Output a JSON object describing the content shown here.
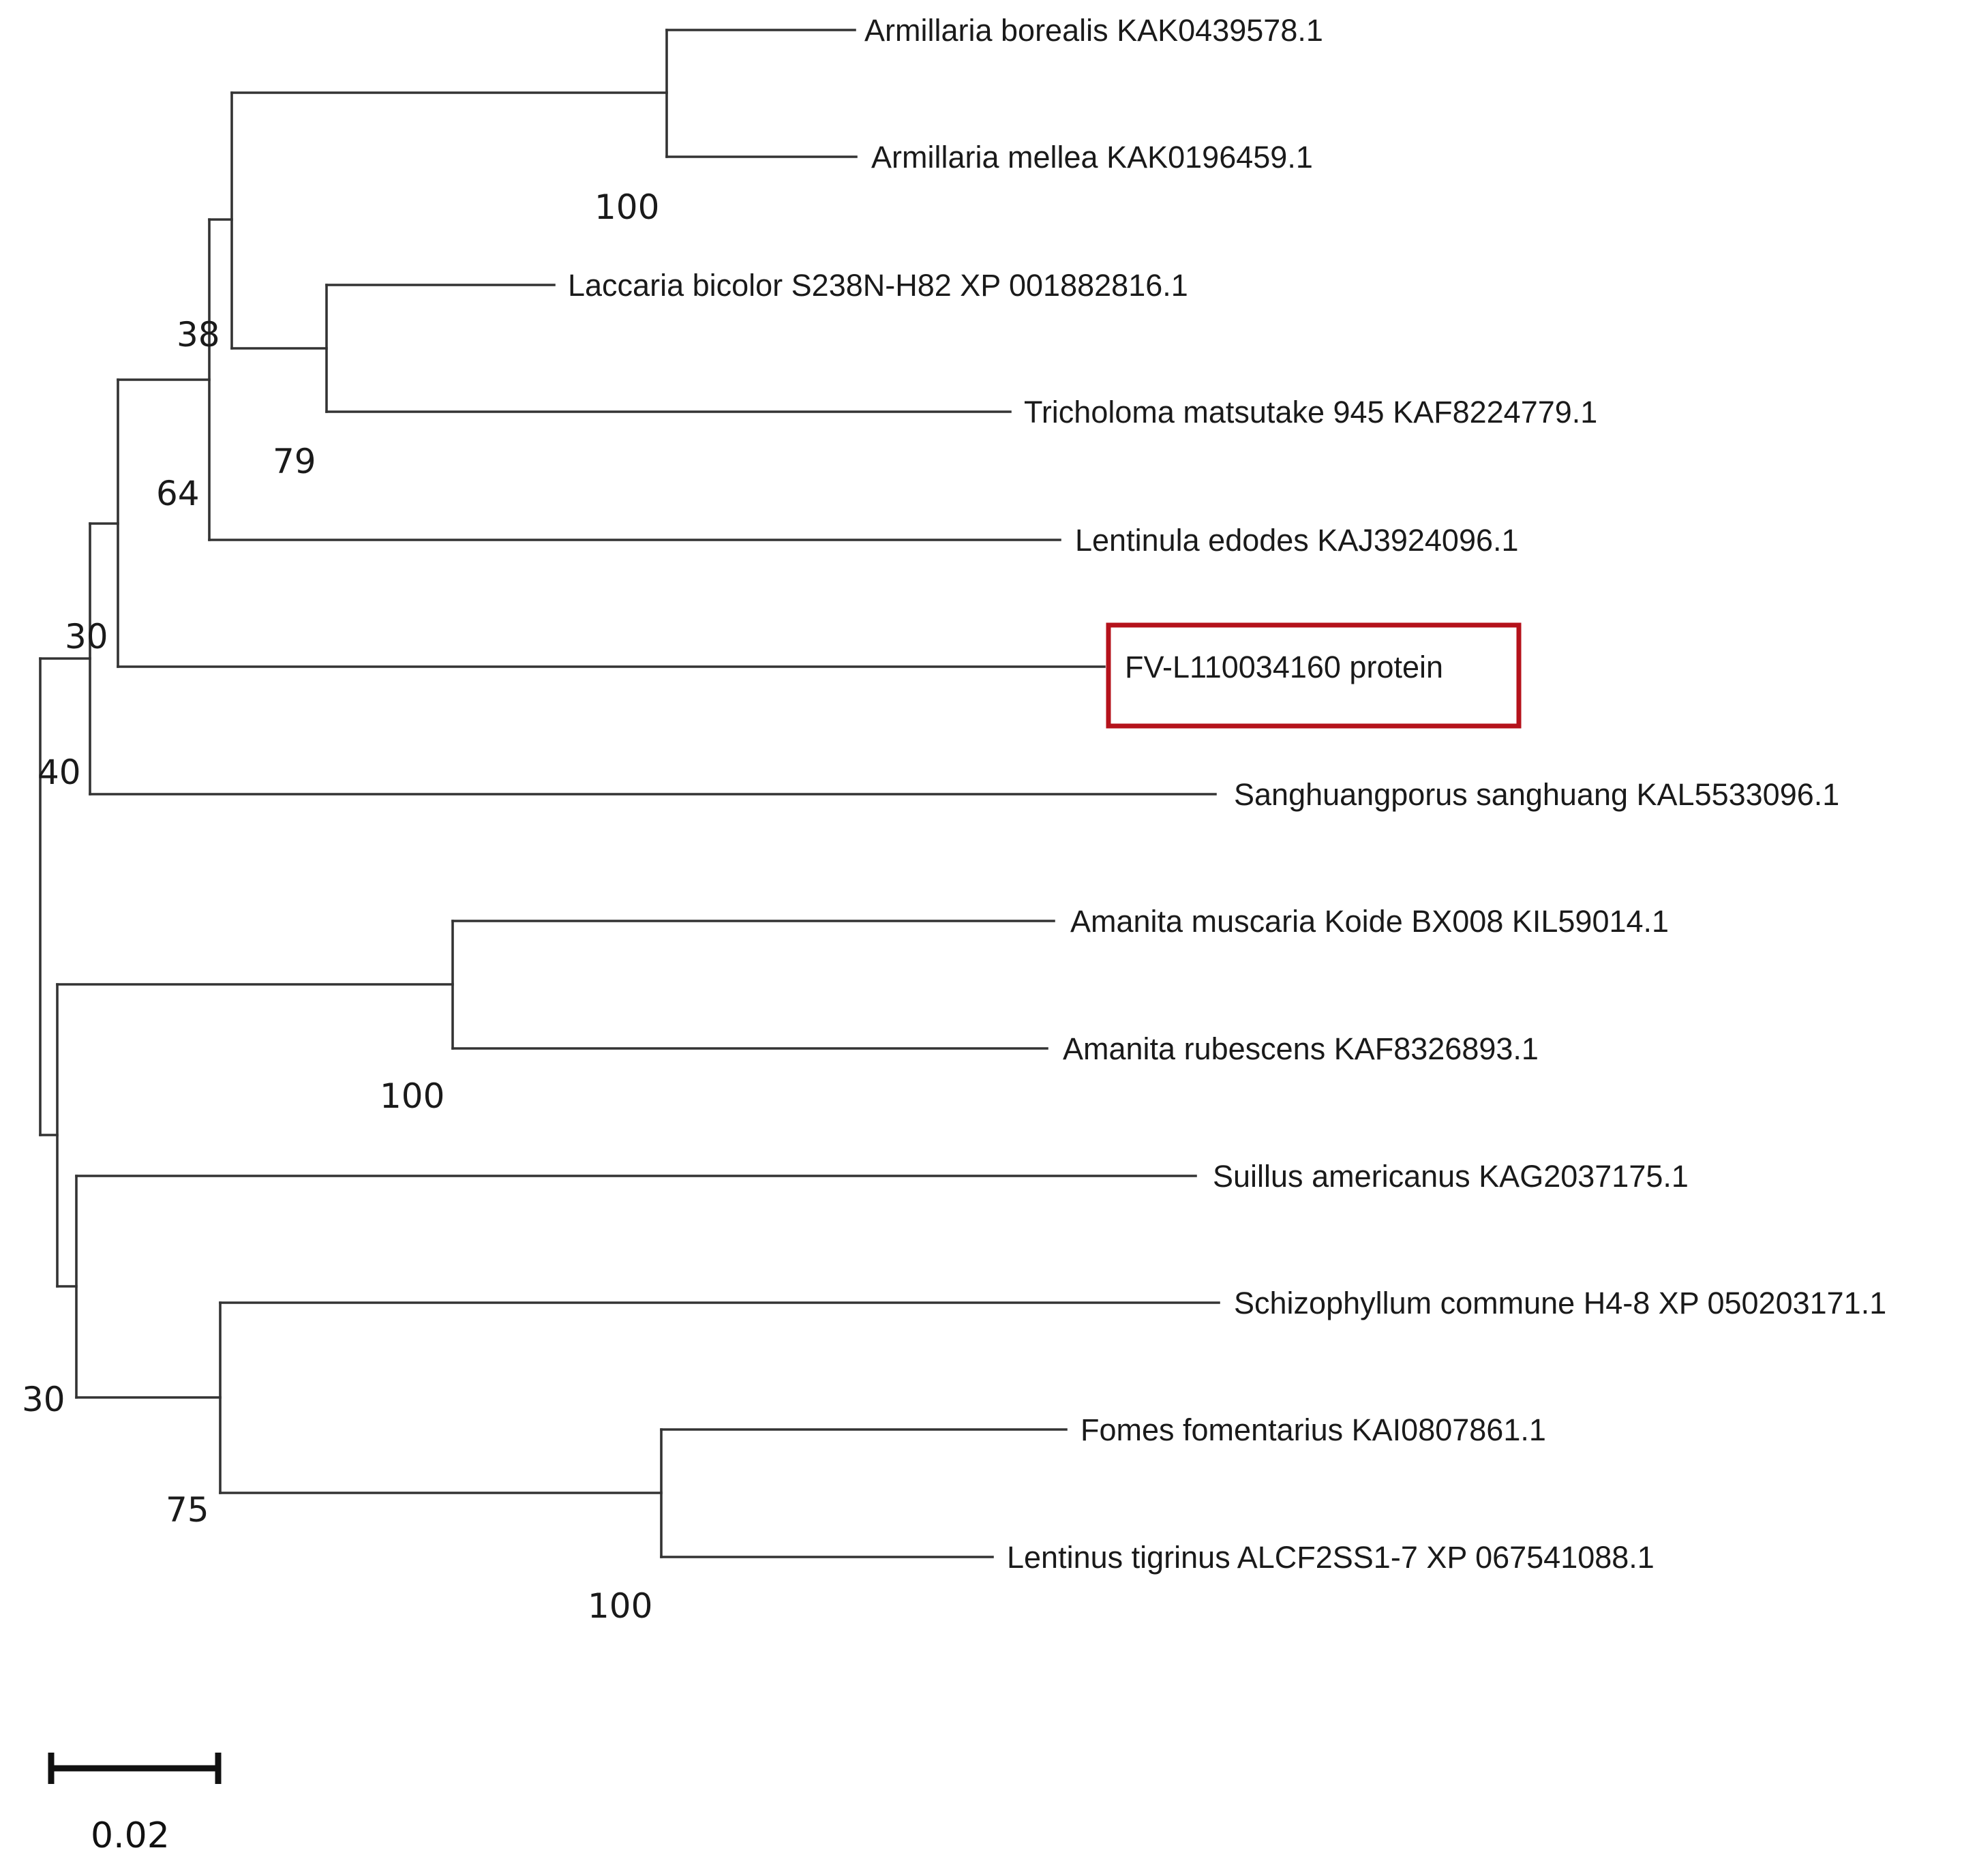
{
  "taxa": [
    {
      "id": "t1",
      "label": "Armillaria borealis KAK0439578.1"
    },
    {
      "id": "t2",
      "label": "Armillaria mellea KAK0196459.1"
    },
    {
      "id": "t3",
      "label": "Laccaria bicolor S238N-H82 XP 001882816.1"
    },
    {
      "id": "t4",
      "label": "Tricholoma matsutake 945 KAF8224779.1"
    },
    {
      "id": "t5",
      "label": "Lentinula edodes KAJ3924096.1"
    },
    {
      "id": "t6",
      "label": "FV-L110034160 protein",
      "highlighted": true
    },
    {
      "id": "t7",
      "label": "Sanghuangporus sanghuang KAL5533096.1"
    },
    {
      "id": "t8",
      "label": "Amanita muscaria Koide BX008 KIL59014.1"
    },
    {
      "id": "t9",
      "label": "Amanita rubescens KAF8326893.1"
    },
    {
      "id": "t10",
      "label": "Suillus americanus KAG2037175.1"
    },
    {
      "id": "t11",
      "label": "Schizophyllum commune H4-8 XP 050203171.1"
    },
    {
      "id": "t12",
      "label": "Fomes fomentarius KAI0807861.1"
    },
    {
      "id": "t13",
      "label": "Lentinus tigrinus ALCF2SS1-7 XP 067541088.1"
    }
  ],
  "bootstrap": {
    "armillaria": "100",
    "laccaria_tricholoma": "79",
    "node_38": "38",
    "node_64": "64",
    "node_30_upper": "30",
    "node_40": "40",
    "amanita": "100",
    "fomes_lentinus": "100",
    "node_75": "75",
    "node_30_lower": "30"
  },
  "scale": {
    "label": "0.02",
    "value": 0.02
  },
  "colors": {
    "branch": "#333333",
    "highlight": "#b5121b",
    "text": "#1a1a1a"
  }
}
